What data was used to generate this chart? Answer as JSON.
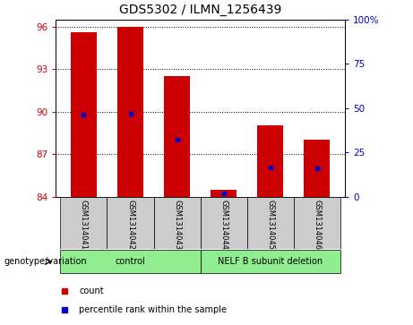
{
  "title": "GDS5302 / ILMN_1256439",
  "samples": [
    "GSM1314041",
    "GSM1314042",
    "GSM1314043",
    "GSM1314044",
    "GSM1314045",
    "GSM1314046"
  ],
  "red_top": [
    95.6,
    96.0,
    92.5,
    84.45,
    89.0,
    88.0
  ],
  "red_base": 84.0,
  "blue_y": [
    89.8,
    89.85,
    88.0,
    84.22,
    86.05,
    86.0
  ],
  "ylim_left": [
    84,
    96.5
  ],
  "ylim_right": [
    0,
    100
  ],
  "yticks_left": [
    84,
    87,
    90,
    93,
    96
  ],
  "yticks_right": [
    0,
    25,
    50,
    75,
    100
  ],
  "groups": [
    {
      "label": "control",
      "indices": [
        0,
        1,
        2
      ],
      "color": "#90ee90"
    },
    {
      "label": "NELF B subunit deletion",
      "indices": [
        3,
        4,
        5
      ],
      "color": "#90ee90"
    }
  ],
  "bar_width": 0.55,
  "red_color": "#cc0000",
  "blue_color": "#0000cc",
  "title_fontsize": 10,
  "tick_fontsize": 7.5,
  "sample_fontsize": 6,
  "group_fontsize": 7,
  "legend_fontsize": 7
}
